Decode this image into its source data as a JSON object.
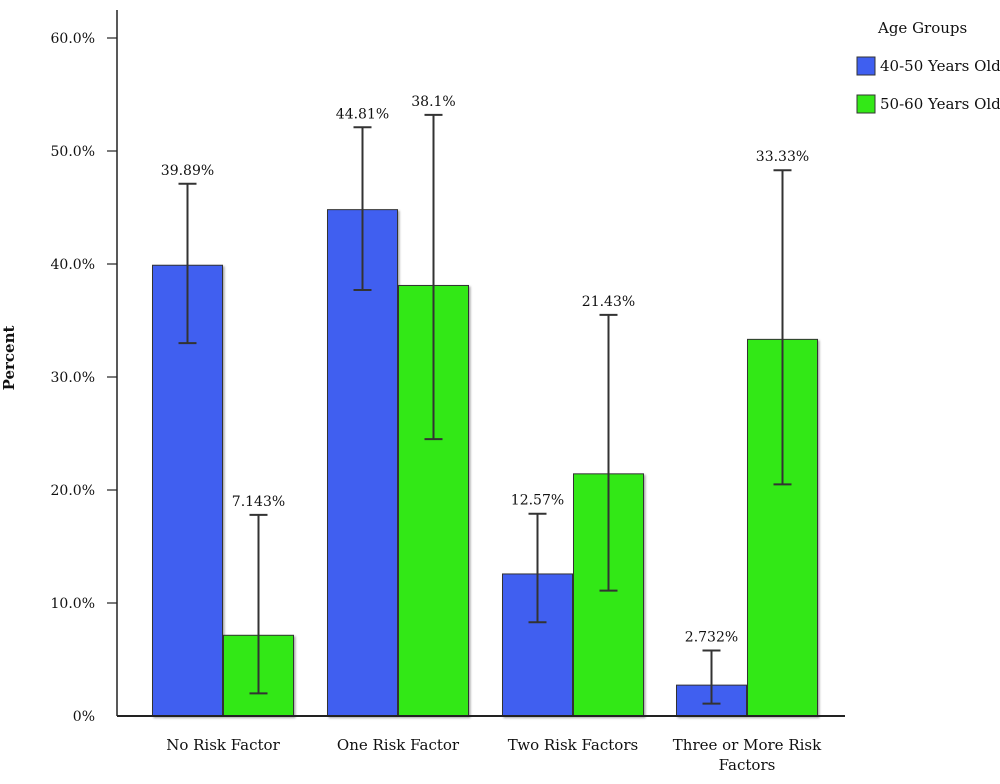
{
  "chart_data": {
    "type": "bar",
    "ylabel": "Percent",
    "xlabel": "",
    "ylim": [
      0,
      62
    ],
    "yticks": [
      0,
      10,
      20,
      30,
      40,
      50,
      60
    ],
    "ytick_labels": [
      "0%",
      "10.0%",
      "20.0%",
      "30.0%",
      "40.0%",
      "50.0%",
      "60.0%"
    ],
    "categories": [
      "No Risk Factor",
      "One Risk Factor",
      "Two Risk Factors",
      "Three or More Risk Factors"
    ],
    "legend": {
      "title": "Age Groups",
      "position": "top-right"
    },
    "series": [
      {
        "name": "40-50 Years Old",
        "color": "#3f5ff0",
        "values": [
          39.89,
          44.81,
          12.57,
          2.732
        ],
        "labels": [
          "39.89%",
          "44.81%",
          "12.57%",
          "2.732%"
        ],
        "err_low": [
          33.0,
          37.7,
          8.3,
          1.1
        ],
        "err_high": [
          47.1,
          52.1,
          17.9,
          5.8
        ]
      },
      {
        "name": "50-60 Years Old",
        "color": "#33e817",
        "values": [
          7.143,
          38.1,
          21.43,
          33.33
        ],
        "labels": [
          "7.143%",
          "38.1%",
          "21.43%",
          "33.33%"
        ],
        "err_low": [
          2.0,
          24.5,
          11.1,
          20.5
        ],
        "err_high": [
          17.8,
          53.2,
          35.5,
          48.3
        ]
      }
    ]
  }
}
